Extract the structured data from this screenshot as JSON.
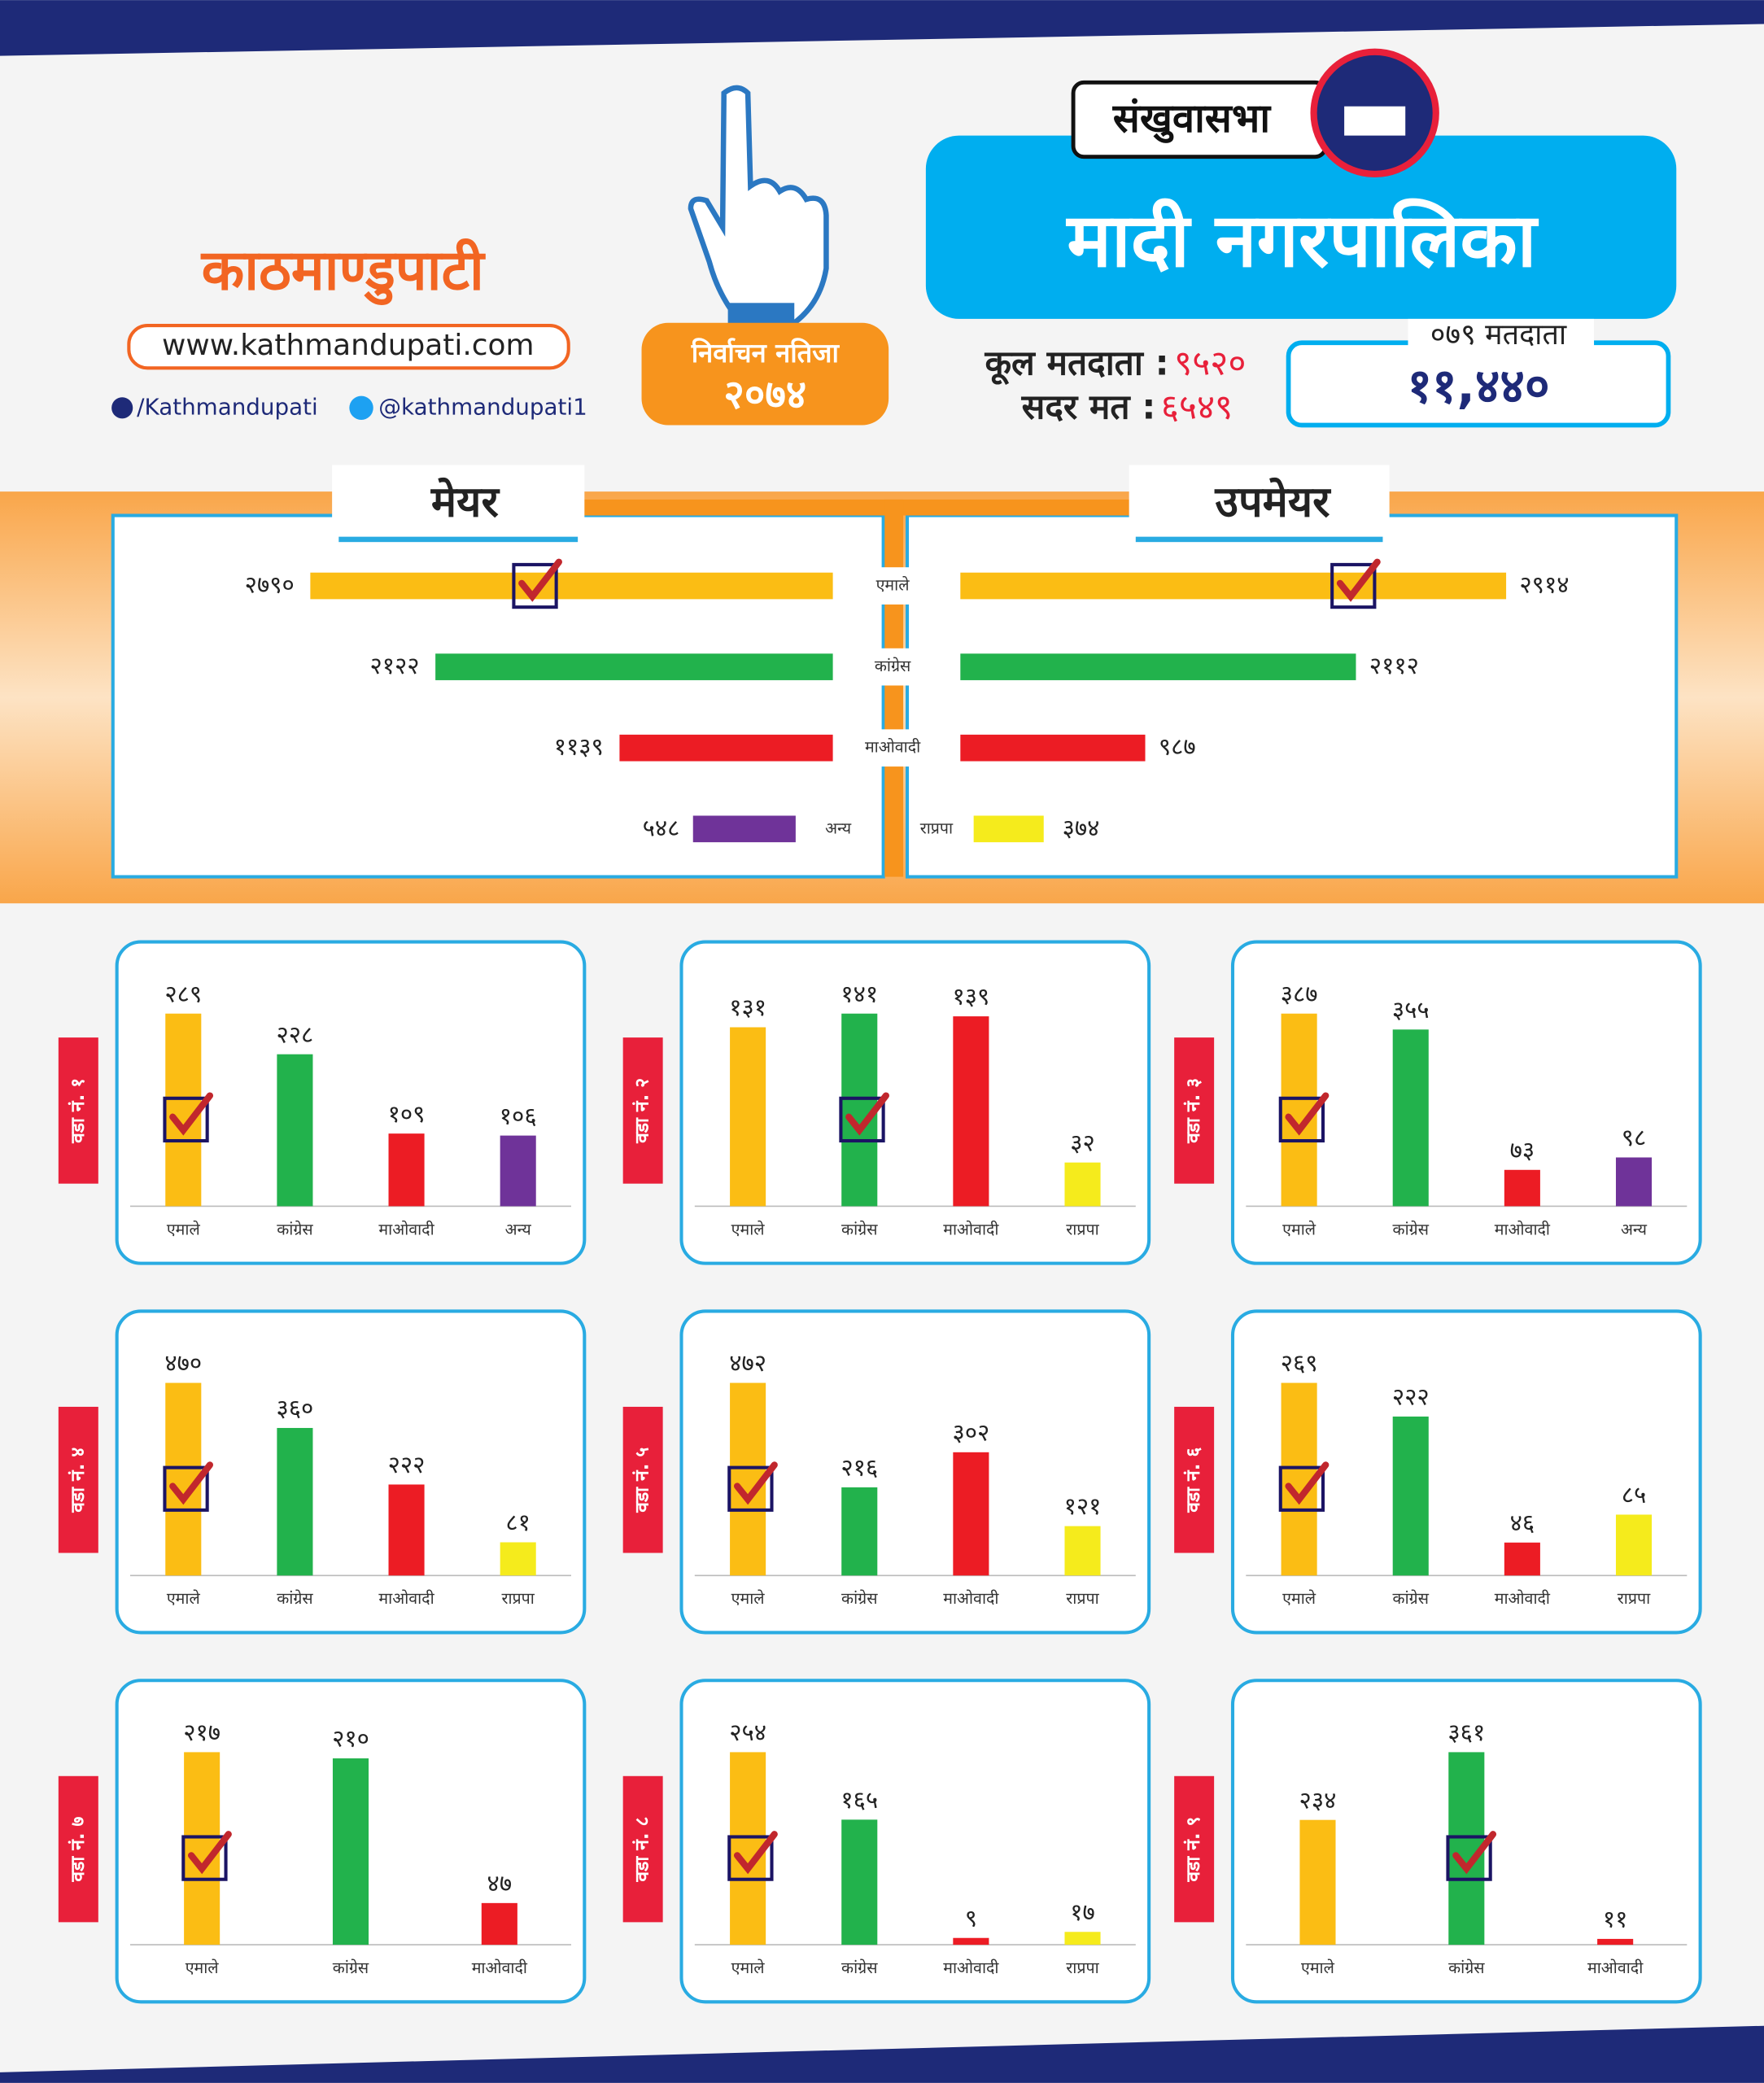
{
  "header": {
    "district": "संखुवासभा",
    "municipality": "मादी नगरपालिका",
    "logo": "काठमाण्डुपाटी",
    "website": "www.kathmandupati.com",
    "facebook": "/Kathmandupati",
    "twitter": "@kathmandupati1",
    "badge_title": "निर्वाचन नतिजा",
    "badge_year": "२०७४",
    "total_voters_label": "कूल मतदाता :",
    "total_voters": "९५२०",
    "valid_votes_label": "सदर मत :",
    "valid_votes": "६५४९",
    "voters_079_label": "०७९ मतदाता",
    "voters_079": "११,४४०"
  },
  "chart_data": [
    {
      "type": "butterfly",
      "categories": [
        "एमाले",
        "कांग्रेस",
        "माओवादी"
      ],
      "colors": [
        "#fbbd14",
        "#22b24c",
        "#ec1c24"
      ],
      "series": [
        {
          "name": "मेयर",
          "values": [
            2790,
            2122,
            1139
          ],
          "value_labels": [
            "२७९०",
            "२१२२",
            "११३९"
          ],
          "winner": 0
        },
        {
          "name": "उपमेयर",
          "values": [
            2914,
            2112,
            987
          ],
          "value_labels": [
            "२९१४",
            "२११२",
            "९८७"
          ],
          "winner": 0
        }
      ],
      "extra": [
        {
          "name": "अन्य",
          "value": 548,
          "value_label": "५४८",
          "color": "#6f3399",
          "series": 0
        },
        {
          "name": "राप्रपा",
          "value": 374,
          "value_label": "३७४",
          "color": "#f5eb1c",
          "series": 1
        }
      ]
    },
    {
      "type": "bar",
      "title": "वडा नं. १",
      "categories": [
        "एमाले",
        "कांग्रेस",
        "माओवादी",
        "अन्य"
      ],
      "values": [
        289,
        228,
        109,
        106
      ],
      "value_labels": [
        "२८९",
        "२२८",
        "१०९",
        "१०६"
      ],
      "colors": [
        "#fbbd14",
        "#22b24c",
        "#ec1c24",
        "#6f3399"
      ],
      "winner": 0
    },
    {
      "type": "bar",
      "title": "वडा नं. २",
      "categories": [
        "एमाले",
        "कांग्रेस",
        "माओवादी",
        "राप्रपा"
      ],
      "values": [
        131,
        141,
        139,
        32
      ],
      "value_labels": [
        "१३१",
        "१४१",
        "१३९",
        "३२"
      ],
      "colors": [
        "#fbbd14",
        "#22b24c",
        "#ec1c24",
        "#f5eb1c"
      ],
      "winner": 1
    },
    {
      "type": "bar",
      "title": "वडा नं. ३",
      "categories": [
        "एमाले",
        "कांग्रेस",
        "माओवादी",
        "अन्य"
      ],
      "values": [
        387,
        355,
        73,
        98
      ],
      "value_labels": [
        "३८७",
        "३५५",
        "७३",
        "९८"
      ],
      "colors": [
        "#fbbd14",
        "#22b24c",
        "#ec1c24",
        "#6f3399"
      ],
      "winner": 0
    },
    {
      "type": "bar",
      "title": "वडा नं. ४",
      "categories": [
        "एमाले",
        "कांग्रेस",
        "माओवादी",
        "राप्रपा"
      ],
      "values": [
        470,
        360,
        222,
        81
      ],
      "value_labels": [
        "४७०",
        "३६०",
        "२२२",
        "८१"
      ],
      "colors": [
        "#fbbd14",
        "#22b24c",
        "#ec1c24",
        "#f5eb1c"
      ],
      "winner": 0
    },
    {
      "type": "bar",
      "title": "वडा नं. ५",
      "categories": [
        "एमाले",
        "कांग्रेस",
        "माओवादी",
        "राप्रपा"
      ],
      "values": [
        472,
        216,
        302,
        121
      ],
      "value_labels": [
        "४७२",
        "२१६",
        "३०२",
        "१२१"
      ],
      "colors": [
        "#fbbd14",
        "#22b24c",
        "#ec1c24",
        "#f5eb1c"
      ],
      "winner": 0
    },
    {
      "type": "bar",
      "title": "वडा नं. ६",
      "categories": [
        "एमाले",
        "कांग्रेस",
        "माओवादी",
        "राप्रपा"
      ],
      "values": [
        269,
        222,
        46,
        85
      ],
      "value_labels": [
        "२६९",
        "२२२",
        "४६",
        "८५"
      ],
      "colors": [
        "#fbbd14",
        "#22b24c",
        "#ec1c24",
        "#f5eb1c"
      ],
      "winner": 0
    },
    {
      "type": "bar",
      "title": "वडा नं. ७",
      "categories": [
        "एमाले",
        "कांग्रेस",
        "माओवादी"
      ],
      "values": [
        217,
        210,
        47
      ],
      "value_labels": [
        "२१७",
        "२१०",
        "४७"
      ],
      "colors": [
        "#fbbd14",
        "#22b24c",
        "#ec1c24"
      ],
      "winner": 0
    },
    {
      "type": "bar",
      "title": "वडा नं. ८",
      "categories": [
        "एमाले",
        "कांग्रेस",
        "माओवादी",
        "राप्रपा"
      ],
      "values": [
        254,
        165,
        9,
        17
      ],
      "value_labels": [
        "२५४",
        "१६५",
        "९",
        "१७"
      ],
      "colors": [
        "#fbbd14",
        "#22b24c",
        "#ec1c24",
        "#f5eb1c"
      ],
      "winner": 0
    },
    {
      "type": "bar",
      "title": "वडा नं. ९",
      "categories": [
        "एमाले",
        "कांग्रेस",
        "माओवादी"
      ],
      "values": [
        234,
        361,
        11
      ],
      "value_labels": [
        "२३४",
        "३६१",
        "११"
      ],
      "colors": [
        "#fbbd14",
        "#22b24c",
        "#ec1c24"
      ],
      "winner": 1
    }
  ]
}
